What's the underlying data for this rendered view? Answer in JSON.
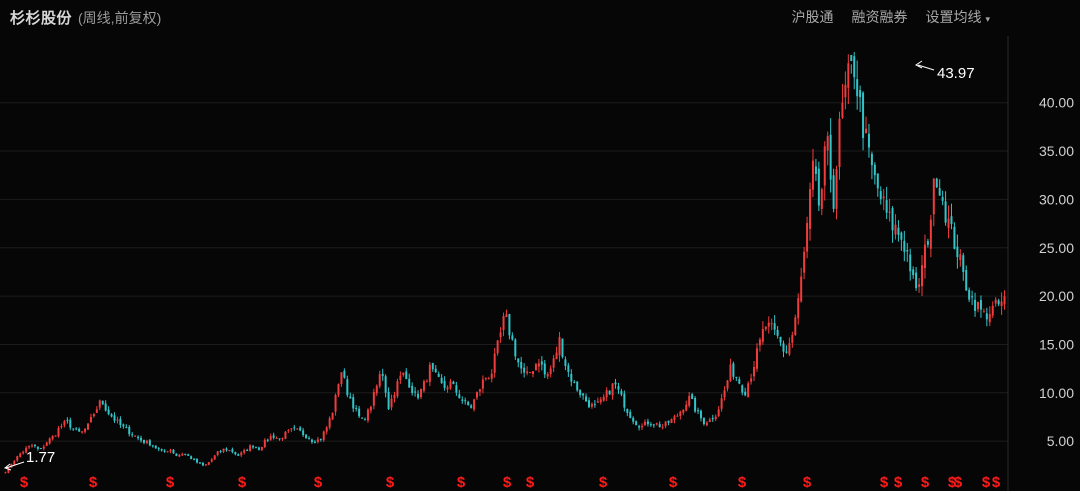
{
  "header": {
    "stock_name": "杉杉股份",
    "mode": "(周线,前复权)"
  },
  "toolbar": {
    "link_hgt": "沪股通",
    "link_margin": "融资融券",
    "ma_settings": "设置均线",
    "ma_caret": "▾"
  },
  "price_axis": {
    "ticks": [
      "5.00",
      "10.00",
      "15.00",
      "20.00",
      "25.00",
      "30.00",
      "35.00",
      "40.00"
    ]
  },
  "markers": {
    "high_label": "43.97",
    "low_label": "1.77",
    "event_symbol": "$"
  },
  "colors": {
    "background": "#060606",
    "grid": "#1c1c1c",
    "up": "#f03c3c",
    "down": "#31c5c9",
    "axis_text": "#d0d0d0",
    "event": "#ff1a1a"
  },
  "chart_data": {
    "type": "candlestick",
    "title": "杉杉股份 (周线,前复权)",
    "ylim": [
      1,
      45
    ],
    "y_ticks": [
      5,
      10,
      15,
      20,
      25,
      30,
      35,
      40
    ],
    "max": 43.97,
    "min": 1.77,
    "series": [
      {
        "name": "weekly-close",
        "values": [
          1.77,
          2.8,
          3.6,
          4.2,
          4.6,
          4.0,
          4.9,
          5.5,
          6.5,
          7.0,
          6.2,
          5.8,
          6.5,
          8.0,
          9.2,
          8.0,
          7.2,
          6.5,
          6.0,
          5.5,
          5.0,
          4.8,
          4.3,
          3.8,
          4.2,
          3.5,
          3.8,
          3.3,
          2.8,
          2.4,
          3.0,
          3.8,
          4.2,
          4.0,
          3.5,
          4.0,
          4.6,
          4.2,
          5.0,
          5.6,
          5.2,
          5.8,
          6.2,
          6.0,
          5.5,
          5.0,
          5.2,
          6.5,
          8.5,
          12.5,
          10.0,
          8.5,
          7.0,
          8.0,
          10.0,
          12.5,
          8.5,
          10.5,
          12.0,
          11.0,
          9.5,
          10.5,
          12.5,
          11.5,
          10.5,
          11.0,
          10.0,
          9.0,
          8.5,
          10.0,
          11.5,
          12.0,
          15.0,
          18.0,
          15.5,
          13.0,
          11.5,
          12.5,
          13.5,
          11.5,
          13.0,
          15.5,
          12.5,
          11.0,
          10.0,
          9.0,
          8.5,
          9.0,
          10.0,
          11.0,
          9.5,
          8.0,
          7.0,
          6.5,
          7.0,
          6.8,
          6.5,
          7.0,
          7.5,
          8.5,
          9.5,
          8.0,
          7.0,
          7.2,
          8.0,
          10.0,
          12.5,
          11.5,
          10.0,
          12.0,
          14.5,
          17.0,
          16.5,
          15.5,
          14.0,
          16.0,
          20.0,
          26.0,
          33.0,
          29.0,
          36.0,
          30.0,
          38.0,
          42.0,
          43.97,
          39.0,
          35.0,
          32.0,
          30.0,
          28.0,
          27.0,
          26.0,
          24.0,
          20.0,
          23.0,
          27.0,
          33.0,
          30.0,
          27.0,
          25.0,
          22.0,
          20.0,
          19.0,
          18.0,
          18.5,
          19.0,
          19.5
        ]
      }
    ]
  }
}
